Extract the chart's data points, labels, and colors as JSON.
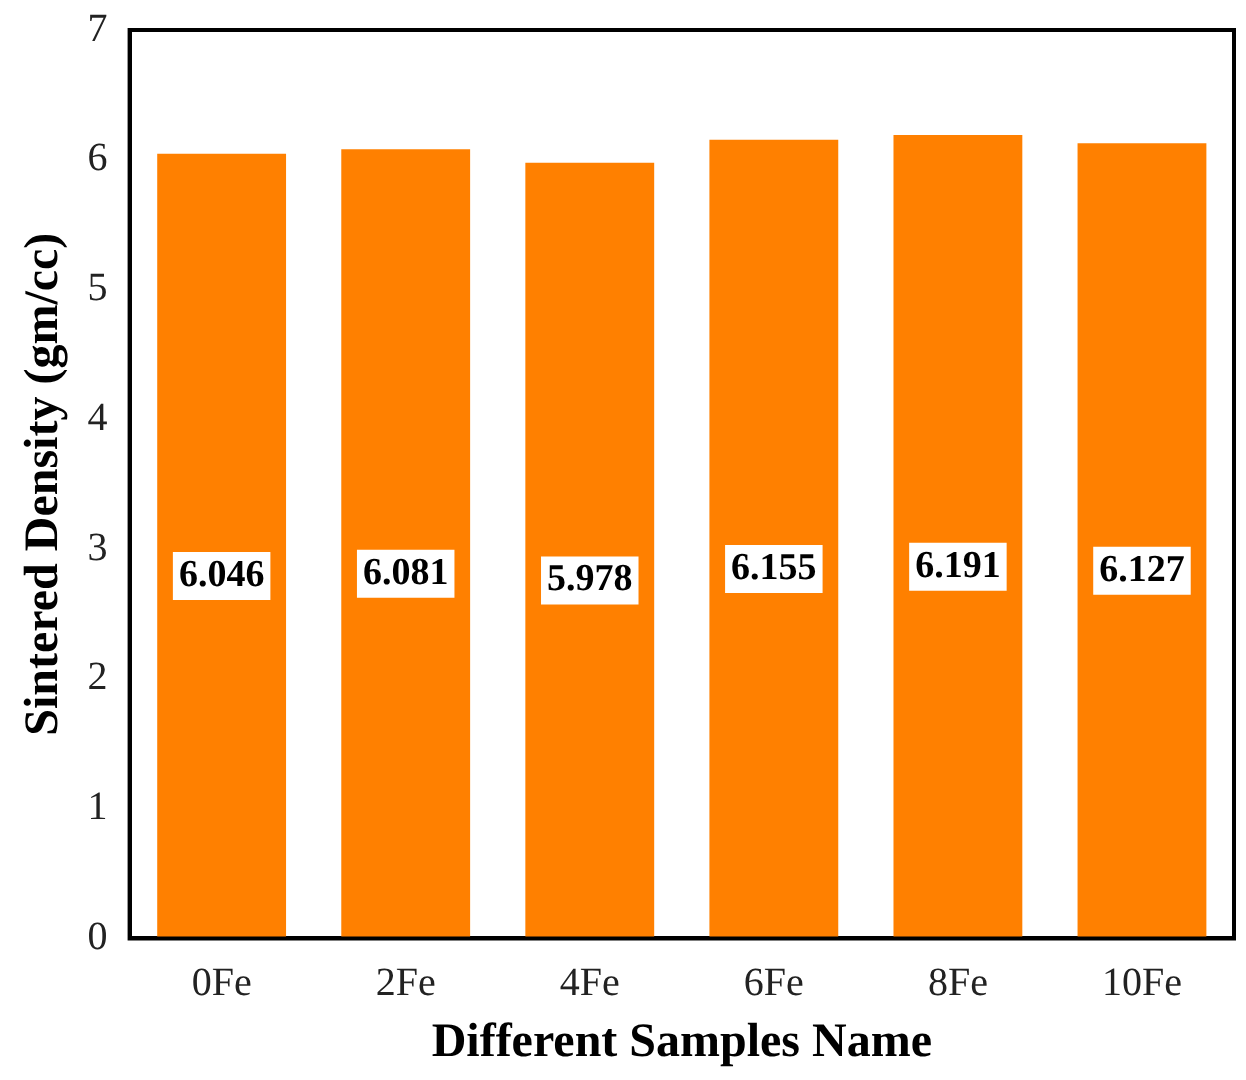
{
  "chart_data": {
    "type": "bar",
    "xlabel": "Different Samples Name",
    "ylabel": "Sintered Density (gm/cc)",
    "categories": [
      "0Fe",
      "2Fe",
      "4Fe",
      "6Fe",
      "8Fe",
      "10Fe"
    ],
    "values": [
      6.046,
      6.081,
      5.978,
      6.155,
      6.191,
      6.127
    ],
    "color": "#ff8000",
    "ylim": [
      0,
      7
    ],
    "yticks": [
      0,
      1,
      2,
      3,
      4,
      5,
      6,
      7
    ],
    "grid": false,
    "legend": false,
    "data_labels": true
  }
}
